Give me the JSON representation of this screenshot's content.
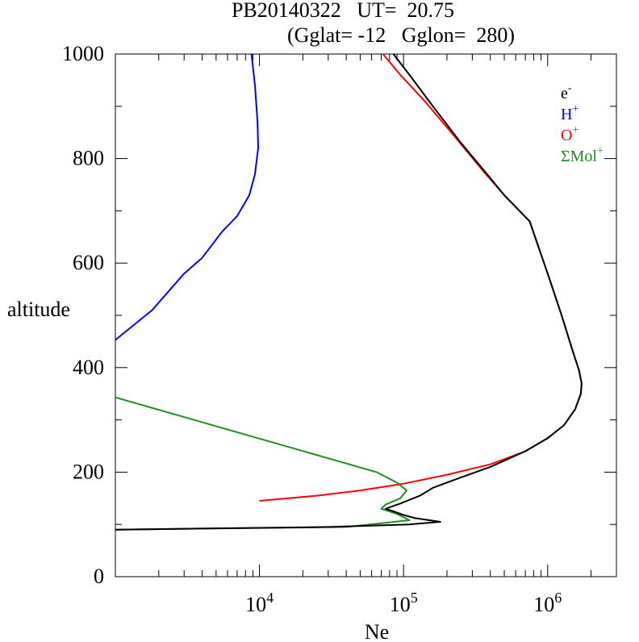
{
  "chart_data": {
    "type": "line",
    "title_line1": "PB20140322   UT=  20.75",
    "title_line2": "(Gglat= -12   Gglon=  280)",
    "xlabel": "Ne",
    "ylabel": "altitude",
    "x_scale": "log",
    "xlim": [
      1000,
      3000000
    ],
    "ylim": [
      0,
      1000
    ],
    "grid": false,
    "legend_position": "top-right",
    "y_ticks": [
      "0",
      "200",
      "400",
      "600",
      "800",
      "1000"
    ],
    "x_ticks": [
      {
        "value": 10000,
        "base": "10",
        "exp": "4"
      },
      {
        "value": 100000,
        "base": "10",
        "exp": "5"
      },
      {
        "value": 1000000,
        "base": "10",
        "exp": "6"
      }
    ],
    "series": [
      {
        "name": "e-",
        "label_base": "e",
        "label_sup": "-",
        "color": "#000000",
        "points": [
          [
            1000,
            90
          ],
          [
            30000,
            95
          ],
          [
            110000,
            100
          ],
          [
            180000,
            105
          ],
          [
            120000,
            112
          ],
          [
            100000,
            118
          ],
          [
            85000,
            125
          ],
          [
            75000,
            130
          ],
          [
            95000,
            140
          ],
          [
            130000,
            155
          ],
          [
            160000,
            170
          ],
          [
            250000,
            190
          ],
          [
            400000,
            210
          ],
          [
            700000,
            240
          ],
          [
            1000000,
            265
          ],
          [
            1300000,
            290
          ],
          [
            1550000,
            320
          ],
          [
            1700000,
            350
          ],
          [
            1720000,
            370
          ],
          [
            1650000,
            395
          ],
          [
            1500000,
            430
          ],
          [
            1250000,
            500
          ],
          [
            1000000,
            580
          ],
          [
            750000,
            680
          ],
          [
            500000,
            730
          ],
          [
            380000,
            770
          ],
          [
            250000,
            830
          ],
          [
            160000,
            900
          ],
          [
            110000,
            960
          ],
          [
            85000,
            1000
          ]
        ]
      },
      {
        "name": "H+",
        "label_base": "H",
        "label_sup": "+",
        "color": "#0000ff",
        "points": [
          [
            1000,
            453
          ],
          [
            1800,
            510
          ],
          [
            3000,
            580
          ],
          [
            4000,
            610
          ],
          [
            5500,
            660
          ],
          [
            7000,
            690
          ],
          [
            8500,
            730
          ],
          [
            9300,
            770
          ],
          [
            9800,
            820
          ],
          [
            9700,
            870
          ],
          [
            9300,
            940
          ],
          [
            8800,
            1000
          ]
        ]
      },
      {
        "name": "O+",
        "label_base": "O",
        "label_sup": "+",
        "color": "#ff0000",
        "points": [
          [
            10000,
            145
          ],
          [
            25000,
            155
          ],
          [
            50000,
            165
          ],
          [
            100000,
            178
          ],
          [
            200000,
            195
          ],
          [
            400000,
            215
          ],
          [
            700000,
            240
          ],
          [
            1000000,
            265
          ],
          [
            1300000,
            290
          ],
          [
            1550000,
            320
          ],
          [
            1700000,
            350
          ],
          [
            1720000,
            370
          ],
          [
            1650000,
            395
          ],
          [
            1500000,
            430
          ],
          [
            1250000,
            500
          ],
          [
            1000000,
            580
          ],
          [
            750000,
            680
          ],
          [
            500000,
            730
          ],
          [
            360000,
            775
          ],
          [
            230000,
            840
          ],
          [
            140000,
            910
          ],
          [
            95000,
            960
          ],
          [
            72000,
            1000
          ]
        ]
      },
      {
        "name": "ΣMol+",
        "label_base": "ΣMol",
        "label_sup": "+",
        "color": "#228b22",
        "points": [
          [
            1000,
            343
          ],
          [
            65000,
            200
          ],
          [
            90000,
            180
          ],
          [
            105000,
            165
          ],
          [
            95000,
            150
          ],
          [
            75000,
            138
          ],
          [
            70000,
            130
          ],
          [
            90000,
            120
          ],
          [
            110000,
            108
          ],
          [
            40000,
            95
          ],
          [
            1000,
            90
          ]
        ]
      }
    ]
  }
}
